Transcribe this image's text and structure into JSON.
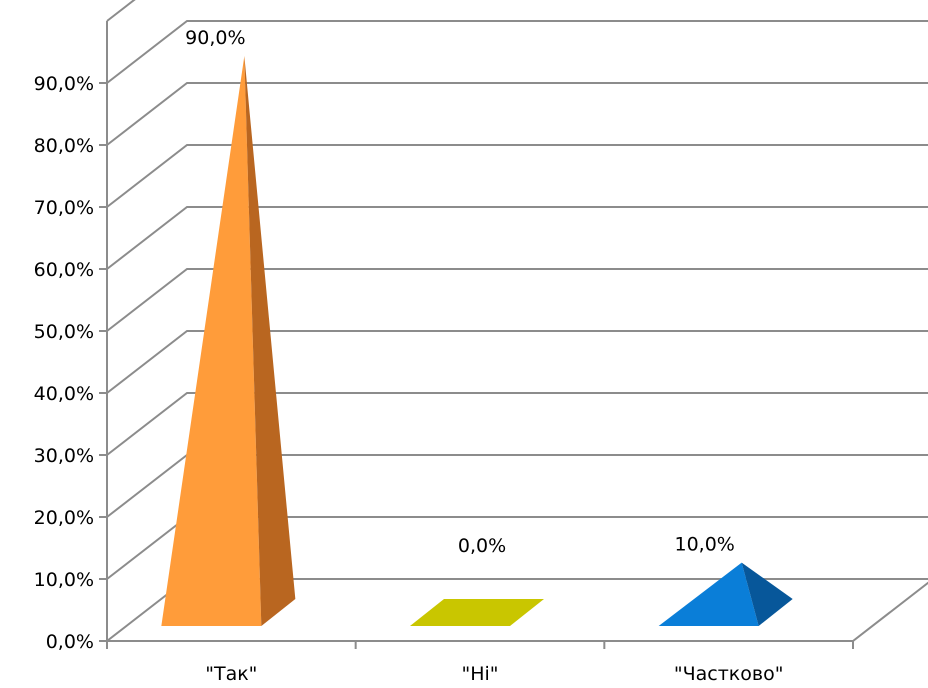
{
  "chart_data": {
    "type": "bar",
    "style": "3d-pyramid",
    "categories": [
      "\"Так\"",
      "\"Ні\"",
      "\"Частково\""
    ],
    "values": [
      90.0,
      0.0,
      10.0
    ],
    "data_labels": [
      "90,0%",
      "0,0%",
      "10,0%"
    ],
    "yticks": [
      "0,0%",
      "10,0%",
      "20,0%",
      "30,0%",
      "40,0%",
      "50,0%",
      "60,0%",
      "70,0%",
      "80,0%",
      "90,0%"
    ],
    "ylim": [
      0,
      90
    ],
    "grid": true,
    "legend": "none",
    "colors": {
      "pyramids": [
        {
          "front": "#FF9C3A",
          "side": "#B96620"
        },
        {
          "front": "#C9C600",
          "side": "#A5A300"
        },
        {
          "front": "#0A7ED8",
          "side": "#07579A"
        }
      ],
      "grid": "#8C8C8C"
    }
  }
}
